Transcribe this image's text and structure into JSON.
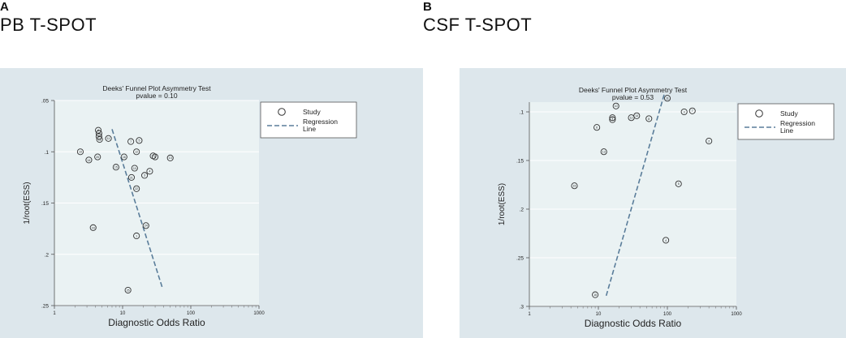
{
  "panels": [
    {
      "letter": "A",
      "subtitle": "PB T-SPOT",
      "legend": {
        "study_label": "Study",
        "regression_label_1": "Regression",
        "regression_label_2": "Line"
      }
    },
    {
      "letter": "B",
      "subtitle": "CSF T-SPOT",
      "legend": {
        "study_label": "Study",
        "regression_label_1": "Regression",
        "regression_label_2": "Line"
      }
    }
  ],
  "colors": {
    "background": "#dde7ec",
    "plot_area": "#eaf2f3",
    "marker": "#333333",
    "regression": "#5a7d9a",
    "grid": "#ffffff"
  },
  "chart_data": [
    {
      "type": "scatter",
      "title": "Deeks' Funnel Plot Asymmetry Test",
      "subtitle": "pvalue  =   0.10",
      "xlabel": "Diagnostic Odds Ratio",
      "ylabel": "1/root(ESS)",
      "x_scale": "log",
      "xlim": [
        1,
        1000
      ],
      "xticks": [
        "1",
        "10",
        "100",
        "1000"
      ],
      "ylim": [
        0.05,
        0.25
      ],
      "y_reversed": true,
      "yticks": [
        ".05",
        ".1",
        ".15",
        ".2",
        ".25"
      ],
      "legend_position": "right",
      "series": [
        {
          "name": "Study",
          "points": [
            {
              "x": 4.4,
              "y": 0.079,
              "label": "9"
            },
            {
              "x": 4.5,
              "y": 0.082,
              "label": "6"
            },
            {
              "x": 4.5,
              "y": 0.085,
              "label": "2"
            },
            {
              "x": 4.6,
              "y": 0.088,
              "label": "18"
            },
            {
              "x": 6.2,
              "y": 0.087,
              "label": "11"
            },
            {
              "x": 2.4,
              "y": 0.1,
              "label": "19"
            },
            {
              "x": 3.2,
              "y": 0.108,
              "label": "14"
            },
            {
              "x": 4.3,
              "y": 0.105,
              "label": "20"
            },
            {
              "x": 8.0,
              "y": 0.115,
              "label": "15"
            },
            {
              "x": 10.5,
              "y": 0.105,
              "label": "16"
            },
            {
              "x": 13.2,
              "y": 0.09,
              "label": "7"
            },
            {
              "x": 17.5,
              "y": 0.089,
              "label": "5"
            },
            {
              "x": 16.0,
              "y": 0.1,
              "label": "12"
            },
            {
              "x": 28.0,
              "y": 0.104,
              "label": "17"
            },
            {
              "x": 30.0,
              "y": 0.105,
              "label": "8"
            },
            {
              "x": 50.0,
              "y": 0.106,
              "label": "13"
            },
            {
              "x": 15.0,
              "y": 0.116,
              "label": "10"
            },
            {
              "x": 25.0,
              "y": 0.119,
              "label": "4"
            },
            {
              "x": 13.5,
              "y": 0.125,
              "label": "21"
            },
            {
              "x": 21.0,
              "y": 0.123,
              "label": "3"
            },
            {
              "x": 16.0,
              "y": 0.136,
              "label": "22"
            },
            {
              "x": 3.7,
              "y": 0.174,
              "label": "23"
            },
            {
              "x": 22.0,
              "y": 0.172,
              "label": "24"
            },
            {
              "x": 16.0,
              "y": 0.182,
              "label": "1"
            },
            {
              "x": 12.0,
              "y": 0.235,
              "label": "25"
            }
          ]
        },
        {
          "name": "Regression Line",
          "line": [
            {
              "x": 7.0,
              "y": 0.078
            },
            {
              "x": 38.0,
              "y": 0.232
            }
          ]
        }
      ]
    },
    {
      "type": "scatter",
      "title": "Deeks' Funnel Plot Asymmetry Test",
      "subtitle": "pvalue  =   0.53",
      "xlabel": "Diagnostic Odds Ratio",
      "ylabel": "1/root(ESS)",
      "x_scale": "log",
      "xlim": [
        1,
        1000
      ],
      "xticks": [
        "1",
        "10",
        "100",
        "1000"
      ],
      "ylim": [
        0.09,
        0.3
      ],
      "y_reversed": true,
      "yticks": [
        ".1",
        ".15",
        ".2",
        ".25",
        ".3"
      ],
      "legend_position": "right",
      "series": [
        {
          "name": "Study",
          "points": [
            {
              "x": 100.0,
              "y": 0.086,
              "label": "11"
            },
            {
              "x": 18.0,
              "y": 0.094,
              "label": "10"
            },
            {
              "x": 230.0,
              "y": 0.099,
              "label": "7"
            },
            {
              "x": 175.0,
              "y": 0.1,
              "label": "3"
            },
            {
              "x": 36.0,
              "y": 0.104,
              "label": "14"
            },
            {
              "x": 30.0,
              "y": 0.106,
              "label": "12"
            },
            {
              "x": 16.0,
              "y": 0.106,
              "label": "9"
            },
            {
              "x": 16.0,
              "y": 0.108,
              "label": "1"
            },
            {
              "x": 54.0,
              "y": 0.107,
              "label": "8"
            },
            {
              "x": 9.5,
              "y": 0.116,
              "label": "6"
            },
            {
              "x": 400.0,
              "y": 0.13,
              "label": "2"
            },
            {
              "x": 12.0,
              "y": 0.141,
              "label": "13"
            },
            {
              "x": 4.5,
              "y": 0.176,
              "label": "15"
            },
            {
              "x": 145.0,
              "y": 0.174,
              "label": "5"
            },
            {
              "x": 95.0,
              "y": 0.232,
              "label": "4"
            },
            {
              "x": 9.0,
              "y": 0.288,
              "label": "16"
            }
          ]
        },
        {
          "name": "Regression Line",
          "line": [
            {
              "x": 13.0,
              "y": 0.289
            },
            {
              "x": 90.0,
              "y": 0.082
            }
          ]
        }
      ]
    }
  ]
}
